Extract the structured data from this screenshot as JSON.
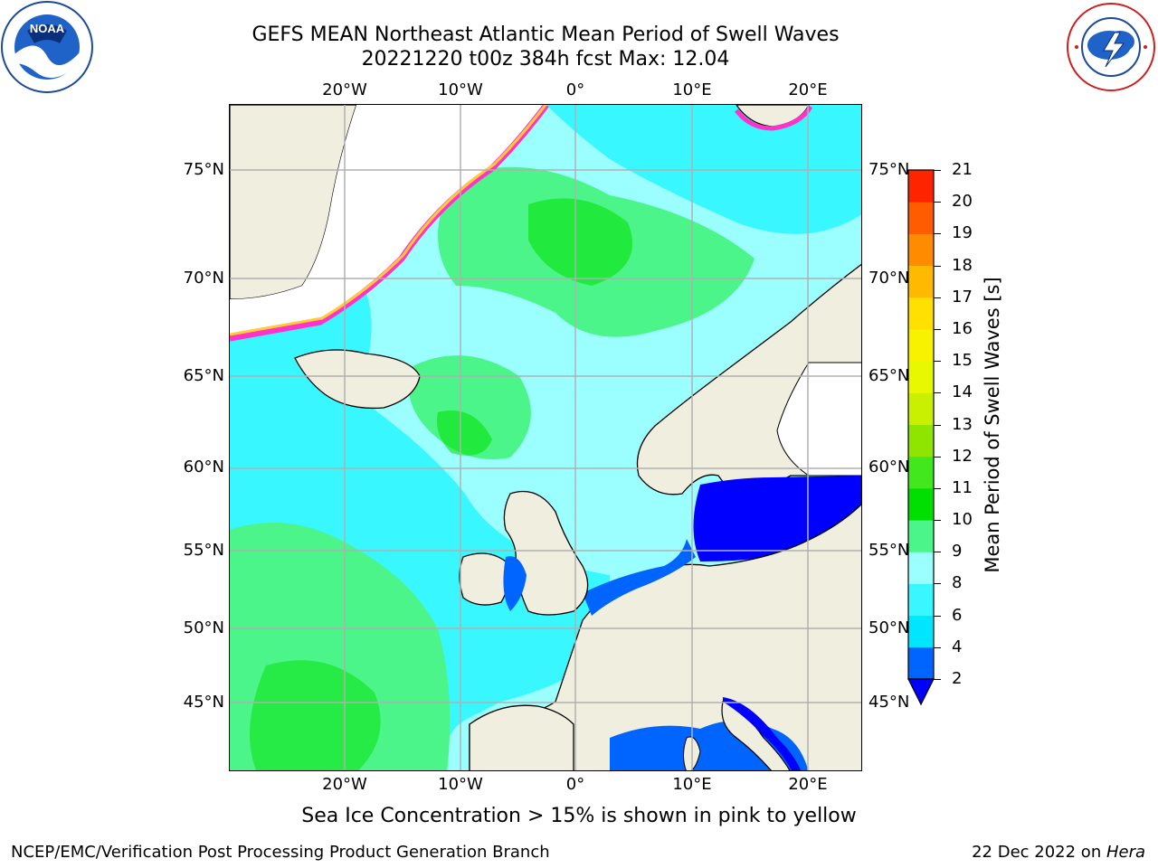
{
  "header": {
    "title_line1": "GEFS MEAN Northeast Atlantic Mean Period of Swell Waves",
    "title_line2": "20221220 t00z 384h fcst   Max: 12.04"
  },
  "logos": {
    "left": "NOAA",
    "left_ring": "NATIONAL OCEANIC AND ATMOSPHERIC ADMINISTRATION · U.S. DEPARTMENT OF COMMERCE",
    "right_ring": "NATIONAL WEATHER SERVICE"
  },
  "map": {
    "lon_labels": [
      "20°W",
      "10°W",
      "0°",
      "10°E",
      "20°E"
    ],
    "lat_labels": [
      "75°N",
      "70°N",
      "65°N",
      "60°N",
      "55°N",
      "50°N",
      "45°N"
    ]
  },
  "colorbar": {
    "label": "Mean Period of Swell Waves [s]",
    "ticks": [
      "2",
      "4",
      "6",
      "8",
      "9",
      "10",
      "11",
      "12",
      "13",
      "14",
      "15",
      "16",
      "17",
      "18",
      "19",
      "20",
      "21"
    ],
    "colors": [
      "#0064ff",
      "#00e6ff",
      "#39f7ff",
      "#9cffff",
      "#4cf58a",
      "#00df00",
      "#43e81c",
      "#8fe400",
      "#c8f000",
      "#e8f800",
      "#f8f200",
      "#ffe000",
      "#ffba00",
      "#ff8c00",
      "#ff5c00",
      "#ff2400"
    ],
    "under_color": "#0000ff"
  },
  "footer": {
    "note": "Sea Ice Concentration > 15% is shown in pink to yellow",
    "credit_left": "NCEP/EMC/Verification Post Processing Product Generation Branch",
    "credit_right_date": "22 Dec 2022 on ",
    "credit_right_host": "Hera"
  }
}
